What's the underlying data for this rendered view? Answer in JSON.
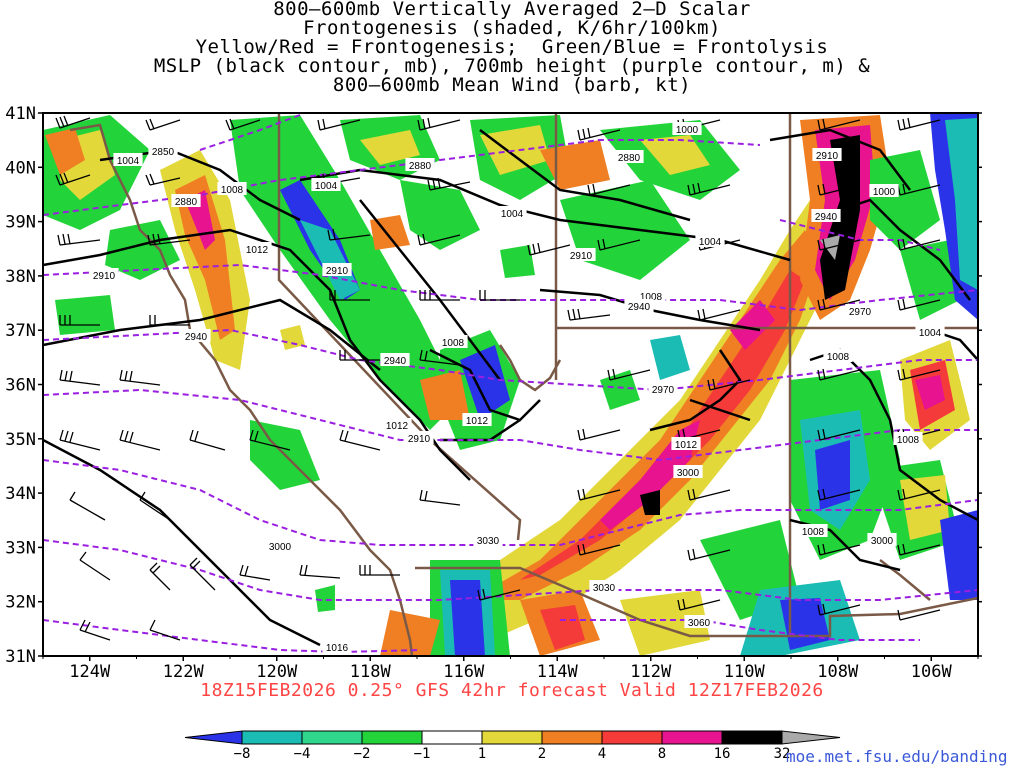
{
  "title_lines": [
    "800–600mb Vertically Averaged 2–D Scalar",
    "Frontogenesis (shaded, K/6hr/100km)",
    "Yellow/Red = Frontogenesis;  Green/Blue = Frontolysis",
    "MSLP (black contour, mb), 700mb height (purple contour, m) &",
    "800–600mb Mean Wind (barb, kt)"
  ],
  "subtitle": "18Z15FEB2026 0.25° GFS 42hr forecast Valid 12Z17FEB2026",
  "credit": "moe.met.fsu.edu/banding",
  "lat_labels": [
    "41N",
    "40N",
    "39N",
    "38N",
    "37N",
    "36N",
    "35N",
    "34N",
    "33N",
    "32N",
    "31N"
  ],
  "lon_labels": [
    "124W",
    "122W",
    "120W",
    "118W",
    "116W",
    "114W",
    "112W",
    "110W",
    "108W",
    "106W"
  ],
  "colorbar": {
    "ticks": [
      "−8",
      "−4",
      "−2",
      "−1",
      "1",
      "2",
      "4",
      "8",
      "16",
      "32"
    ],
    "colors": [
      "#2b33e8",
      "#1bbcb4",
      "#2fd68c",
      "#22d43a",
      "#ffffff",
      "#e3d83a",
      "#ef7f22",
      "#f53a3a",
      "#e8138e",
      "#000000",
      "#aaaaaa"
    ]
  },
  "contours": {
    "mslp": [
      {
        "text": "1004"
      },
      {
        "text": "1008"
      },
      {
        "text": "1012"
      },
      {
        "text": "1004"
      },
      {
        "text": "1004"
      },
      {
        "text": "1008"
      },
      {
        "text": "1008"
      },
      {
        "text": "1012"
      },
      {
        "text": "1000"
      },
      {
        "text": "1004"
      },
      {
        "text": "1008"
      },
      {
        "text": "1012"
      },
      {
        "text": "1000"
      },
      {
        "text": "1004"
      },
      {
        "text": "1008"
      },
      {
        "text": "1008"
      },
      {
        "text": "1012"
      },
      {
        "text": "1016"
      }
    ],
    "heights": [
      {
        "text": "2850"
      },
      {
        "text": "2880"
      },
      {
        "text": "2910"
      },
      {
        "text": "2880"
      },
      {
        "text": "2880"
      },
      {
        "text": "2910"
      },
      {
        "text": "2910"
      },
      {
        "text": "2940"
      },
      {
        "text": "2940"
      },
      {
        "text": "2910"
      },
      {
        "text": "2940"
      },
      {
        "text": "2970"
      },
      {
        "text": "3000"
      },
      {
        "text": "3000"
      },
      {
        "text": "3030"
      },
      {
        "text": "3060"
      },
      {
        "text": "2910"
      },
      {
        "text": "2940"
      },
      {
        "text": "2970"
      },
      {
        "text": "3030"
      },
      {
        "text": "3000"
      }
    ]
  }
}
